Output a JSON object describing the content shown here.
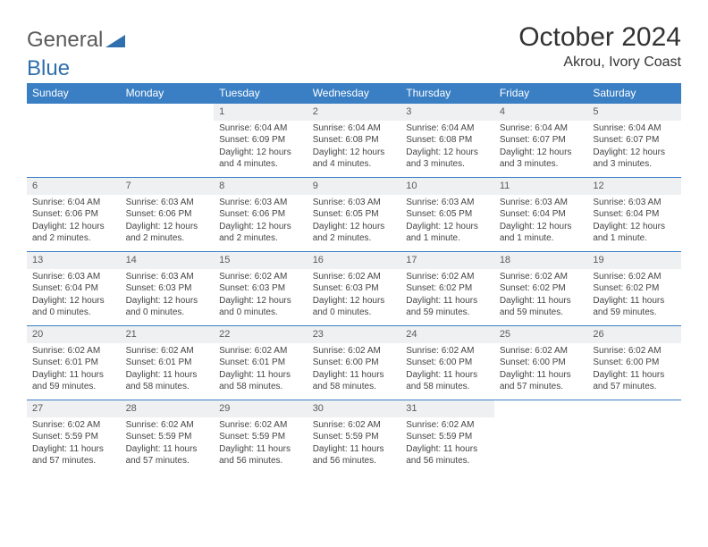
{
  "brand": {
    "word1": "General",
    "word2": "Blue"
  },
  "title": "October 2024",
  "location": "Akrou, Ivory Coast",
  "colors": {
    "header_bg": "#3a7fc4",
    "header_text": "#ffffff",
    "daynum_bg": "#eef0f2",
    "row_border": "#3a7fc4",
    "body_text": "#444444",
    "logo_gray": "#5a5a5a",
    "logo_blue": "#2f6fad",
    "page_bg": "#ffffff"
  },
  "typography": {
    "title_fontsize": 30,
    "location_fontsize": 16,
    "weekday_fontsize": 12,
    "daynum_fontsize": 11,
    "cell_fontsize": 10
  },
  "weekdays": [
    "Sunday",
    "Monday",
    "Tuesday",
    "Wednesday",
    "Thursday",
    "Friday",
    "Saturday"
  ],
  "weeks": [
    [
      {
        "n": "",
        "sr": "",
        "ss": "",
        "dl": ""
      },
      {
        "n": "",
        "sr": "",
        "ss": "",
        "dl": ""
      },
      {
        "n": "1",
        "sr": "Sunrise: 6:04 AM",
        "ss": "Sunset: 6:09 PM",
        "dl": "Daylight: 12 hours and 4 minutes."
      },
      {
        "n": "2",
        "sr": "Sunrise: 6:04 AM",
        "ss": "Sunset: 6:08 PM",
        "dl": "Daylight: 12 hours and 4 minutes."
      },
      {
        "n": "3",
        "sr": "Sunrise: 6:04 AM",
        "ss": "Sunset: 6:08 PM",
        "dl": "Daylight: 12 hours and 3 minutes."
      },
      {
        "n": "4",
        "sr": "Sunrise: 6:04 AM",
        "ss": "Sunset: 6:07 PM",
        "dl": "Daylight: 12 hours and 3 minutes."
      },
      {
        "n": "5",
        "sr": "Sunrise: 6:04 AM",
        "ss": "Sunset: 6:07 PM",
        "dl": "Daylight: 12 hours and 3 minutes."
      }
    ],
    [
      {
        "n": "6",
        "sr": "Sunrise: 6:04 AM",
        "ss": "Sunset: 6:06 PM",
        "dl": "Daylight: 12 hours and 2 minutes."
      },
      {
        "n": "7",
        "sr": "Sunrise: 6:03 AM",
        "ss": "Sunset: 6:06 PM",
        "dl": "Daylight: 12 hours and 2 minutes."
      },
      {
        "n": "8",
        "sr": "Sunrise: 6:03 AM",
        "ss": "Sunset: 6:06 PM",
        "dl": "Daylight: 12 hours and 2 minutes."
      },
      {
        "n": "9",
        "sr": "Sunrise: 6:03 AM",
        "ss": "Sunset: 6:05 PM",
        "dl": "Daylight: 12 hours and 2 minutes."
      },
      {
        "n": "10",
        "sr": "Sunrise: 6:03 AM",
        "ss": "Sunset: 6:05 PM",
        "dl": "Daylight: 12 hours and 1 minute."
      },
      {
        "n": "11",
        "sr": "Sunrise: 6:03 AM",
        "ss": "Sunset: 6:04 PM",
        "dl": "Daylight: 12 hours and 1 minute."
      },
      {
        "n": "12",
        "sr": "Sunrise: 6:03 AM",
        "ss": "Sunset: 6:04 PM",
        "dl": "Daylight: 12 hours and 1 minute."
      }
    ],
    [
      {
        "n": "13",
        "sr": "Sunrise: 6:03 AM",
        "ss": "Sunset: 6:04 PM",
        "dl": "Daylight: 12 hours and 0 minutes."
      },
      {
        "n": "14",
        "sr": "Sunrise: 6:03 AM",
        "ss": "Sunset: 6:03 PM",
        "dl": "Daylight: 12 hours and 0 minutes."
      },
      {
        "n": "15",
        "sr": "Sunrise: 6:02 AM",
        "ss": "Sunset: 6:03 PM",
        "dl": "Daylight: 12 hours and 0 minutes."
      },
      {
        "n": "16",
        "sr": "Sunrise: 6:02 AM",
        "ss": "Sunset: 6:03 PM",
        "dl": "Daylight: 12 hours and 0 minutes."
      },
      {
        "n": "17",
        "sr": "Sunrise: 6:02 AM",
        "ss": "Sunset: 6:02 PM",
        "dl": "Daylight: 11 hours and 59 minutes."
      },
      {
        "n": "18",
        "sr": "Sunrise: 6:02 AM",
        "ss": "Sunset: 6:02 PM",
        "dl": "Daylight: 11 hours and 59 minutes."
      },
      {
        "n": "19",
        "sr": "Sunrise: 6:02 AM",
        "ss": "Sunset: 6:02 PM",
        "dl": "Daylight: 11 hours and 59 minutes."
      }
    ],
    [
      {
        "n": "20",
        "sr": "Sunrise: 6:02 AM",
        "ss": "Sunset: 6:01 PM",
        "dl": "Daylight: 11 hours and 59 minutes."
      },
      {
        "n": "21",
        "sr": "Sunrise: 6:02 AM",
        "ss": "Sunset: 6:01 PM",
        "dl": "Daylight: 11 hours and 58 minutes."
      },
      {
        "n": "22",
        "sr": "Sunrise: 6:02 AM",
        "ss": "Sunset: 6:01 PM",
        "dl": "Daylight: 11 hours and 58 minutes."
      },
      {
        "n": "23",
        "sr": "Sunrise: 6:02 AM",
        "ss": "Sunset: 6:00 PM",
        "dl": "Daylight: 11 hours and 58 minutes."
      },
      {
        "n": "24",
        "sr": "Sunrise: 6:02 AM",
        "ss": "Sunset: 6:00 PM",
        "dl": "Daylight: 11 hours and 58 minutes."
      },
      {
        "n": "25",
        "sr": "Sunrise: 6:02 AM",
        "ss": "Sunset: 6:00 PM",
        "dl": "Daylight: 11 hours and 57 minutes."
      },
      {
        "n": "26",
        "sr": "Sunrise: 6:02 AM",
        "ss": "Sunset: 6:00 PM",
        "dl": "Daylight: 11 hours and 57 minutes."
      }
    ],
    [
      {
        "n": "27",
        "sr": "Sunrise: 6:02 AM",
        "ss": "Sunset: 5:59 PM",
        "dl": "Daylight: 11 hours and 57 minutes."
      },
      {
        "n": "28",
        "sr": "Sunrise: 6:02 AM",
        "ss": "Sunset: 5:59 PM",
        "dl": "Daylight: 11 hours and 57 minutes."
      },
      {
        "n": "29",
        "sr": "Sunrise: 6:02 AM",
        "ss": "Sunset: 5:59 PM",
        "dl": "Daylight: 11 hours and 56 minutes."
      },
      {
        "n": "30",
        "sr": "Sunrise: 6:02 AM",
        "ss": "Sunset: 5:59 PM",
        "dl": "Daylight: 11 hours and 56 minutes."
      },
      {
        "n": "31",
        "sr": "Sunrise: 6:02 AM",
        "ss": "Sunset: 5:59 PM",
        "dl": "Daylight: 11 hours and 56 minutes."
      },
      {
        "n": "",
        "sr": "",
        "ss": "",
        "dl": ""
      },
      {
        "n": "",
        "sr": "",
        "ss": "",
        "dl": ""
      }
    ]
  ]
}
